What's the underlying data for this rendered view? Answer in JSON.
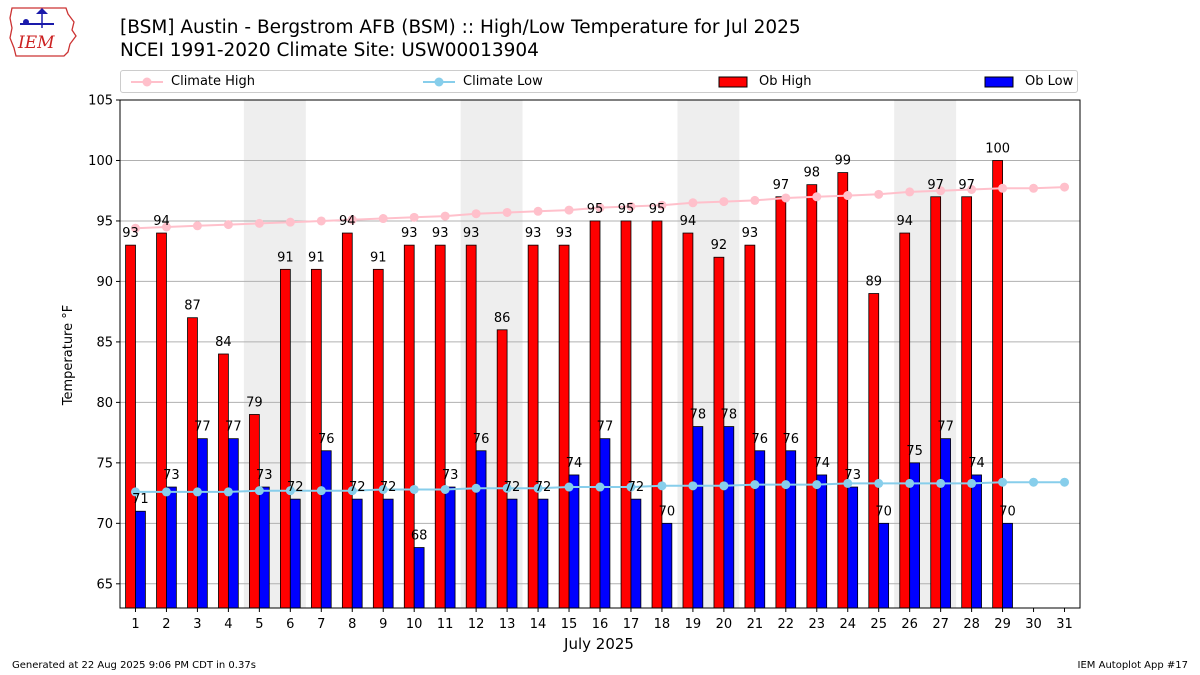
{
  "logo_text": "IEM",
  "title_line1": "[BSM] Austin - Bergstrom AFB (BSM) :: High/Low Temperature for Jul 2025",
  "title_line2": "NCEI 1991-2020 Climate Site: USW00013904",
  "footer_left": "Generated at 22 Aug 2025 9:06 PM CDT in 0.37s",
  "footer_right": "IEM Autoplot App #17",
  "colors": {
    "ob_high": "#ff0000",
    "ob_low": "#0000ff",
    "climate_high": "#ffc0cb",
    "climate_low": "#87ceeb",
    "weekend_shade": "#eeeeee",
    "grid": "#b0b0b0"
  },
  "chart_data": {
    "type": "bar",
    "xlabel": "July 2025",
    "ylabel": "Temperature °F",
    "ylim": [
      63,
      105
    ],
    "yticks": [
      65,
      70,
      75,
      80,
      85,
      90,
      95,
      100,
      105
    ],
    "grid": "horizontal",
    "legend_position": "top",
    "categories": [
      "1",
      "2",
      "3",
      "4",
      "5",
      "6",
      "7",
      "8",
      "9",
      "10",
      "11",
      "12",
      "13",
      "14",
      "15",
      "16",
      "17",
      "18",
      "19",
      "20",
      "21",
      "22",
      "23",
      "24",
      "25",
      "26",
      "27",
      "28",
      "29",
      "30",
      "31"
    ],
    "shaded_periods": [
      [
        5,
        6
      ],
      [
        12,
        13
      ],
      [
        19,
        20
      ],
      [
        26,
        27
      ]
    ],
    "series": [
      {
        "name": "Ob High",
        "type": "bar",
        "values": [
          93,
          94,
          87,
          84,
          79,
          91,
          91,
          94,
          91,
          93,
          93,
          93,
          86,
          93,
          93,
          95,
          95,
          95,
          94,
          92,
          93,
          97,
          98,
          99,
          89,
          94,
          97,
          97,
          100,
          null,
          null
        ]
      },
      {
        "name": "Ob Low",
        "type": "bar",
        "values": [
          71,
          73,
          77,
          77,
          73,
          72,
          76,
          72,
          72,
          68,
          73,
          76,
          72,
          72,
          74,
          77,
          72,
          70,
          78,
          78,
          76,
          76,
          74,
          73,
          70,
          75,
          77,
          74,
          70,
          null,
          null
        ]
      },
      {
        "name": "Climate High",
        "type": "line",
        "values": [
          94.4,
          94.5,
          94.6,
          94.7,
          94.8,
          94.9,
          95.0,
          95.1,
          95.2,
          95.3,
          95.4,
          95.6,
          95.7,
          95.8,
          95.9,
          96.1,
          96.2,
          96.3,
          96.5,
          96.6,
          96.7,
          96.9,
          97.0,
          97.1,
          97.2,
          97.4,
          97.5,
          97.6,
          97.7,
          97.7,
          97.8
        ]
      },
      {
        "name": "Climate Low",
        "type": "line",
        "values": [
          72.6,
          72.6,
          72.6,
          72.6,
          72.7,
          72.7,
          72.7,
          72.7,
          72.8,
          72.8,
          72.8,
          72.9,
          72.9,
          72.9,
          73.0,
          73.0,
          73.0,
          73.1,
          73.1,
          73.1,
          73.2,
          73.2,
          73.2,
          73.3,
          73.3,
          73.3,
          73.3,
          73.3,
          73.4,
          73.4,
          73.4
        ]
      }
    ]
  }
}
